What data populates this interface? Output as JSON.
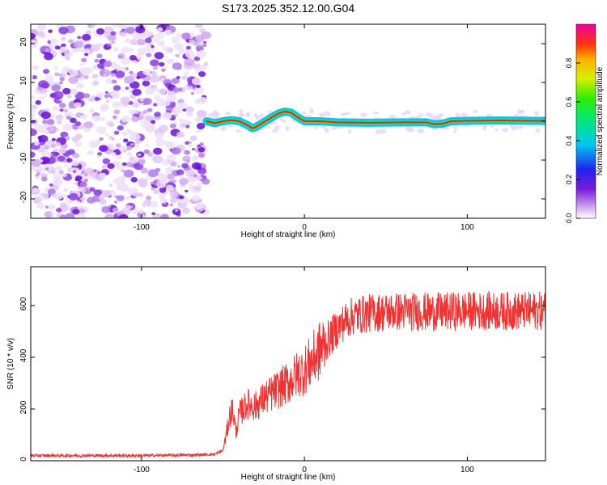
{
  "title": "S173.2025.352.12.00.G04",
  "chart_data": [
    {
      "type": "heatmap",
      "xlabel": "Height of straight line (km)",
      "ylabel": "Frequency (Hz)",
      "xlim": [
        -168,
        148
      ],
      "ylim": [
        -25,
        25
      ],
      "xticks": [
        -100,
        0,
        100
      ],
      "yticks": [
        -20,
        -10,
        0,
        10,
        20
      ],
      "noise_region_x": [
        -168,
        -60
      ],
      "signal_track": {
        "x": [
          -60,
          -55,
          -50,
          -45,
          -40,
          -35,
          -32,
          -30,
          -27,
          -24,
          -20,
          -16,
          -12,
          -8,
          -5,
          -2,
          0,
          5,
          10,
          20,
          40,
          60,
          75,
          80,
          85,
          90,
          100,
          120,
          140,
          148
        ],
        "freq_hz": [
          0,
          -0.5,
          0,
          0.3,
          0,
          -1,
          -1.8,
          -1.5,
          -0.8,
          0,
          1,
          2,
          2.5,
          2.2,
          1.3,
          0.5,
          0,
          0,
          0,
          -0.3,
          -0.4,
          -0.3,
          -0.3,
          -0.8,
          -0.6,
          0,
          0.1,
          0.2,
          0.1,
          0.1
        ]
      },
      "colorbar": {
        "label": "Normalized spectral amplitude",
        "range": [
          0,
          1
        ],
        "ticks": [
          0.0,
          0.2,
          0.4,
          0.6,
          0.8
        ],
        "tick_labels": [
          "0.0",
          "0.2",
          "0.4",
          "0.6",
          "0.8"
        ]
      }
    },
    {
      "type": "line",
      "xlabel": "Height of straight line (km)",
      "ylabel": "SNR (10 * v/v)",
      "xlim": [
        -168,
        148
      ],
      "ylim": [
        0,
        750
      ],
      "xticks": [
        -100,
        0,
        100
      ],
      "yticks": [
        0,
        200,
        400,
        600
      ],
      "series": [
        {
          "name": "SNR",
          "color": "#ee3333",
          "x": [
            -168,
            -140,
            -100,
            -70,
            -55,
            -50,
            -48,
            -46,
            -44,
            -42,
            -40,
            -35,
            -30,
            -25,
            -20,
            -15,
            -10,
            -5,
            0,
            5,
            10,
            15,
            20,
            25,
            30,
            40,
            50,
            60,
            80,
            100,
            120,
            148
          ],
          "values": [
            20,
            20,
            20,
            22,
            25,
            40,
            100,
            170,
            200,
            110,
            180,
            220,
            210,
            240,
            260,
            280,
            300,
            330,
            350,
            390,
            430,
            470,
            510,
            540,
            560,
            570,
            575,
            578,
            575,
            580,
            578,
            580
          ]
        }
      ]
    }
  ]
}
